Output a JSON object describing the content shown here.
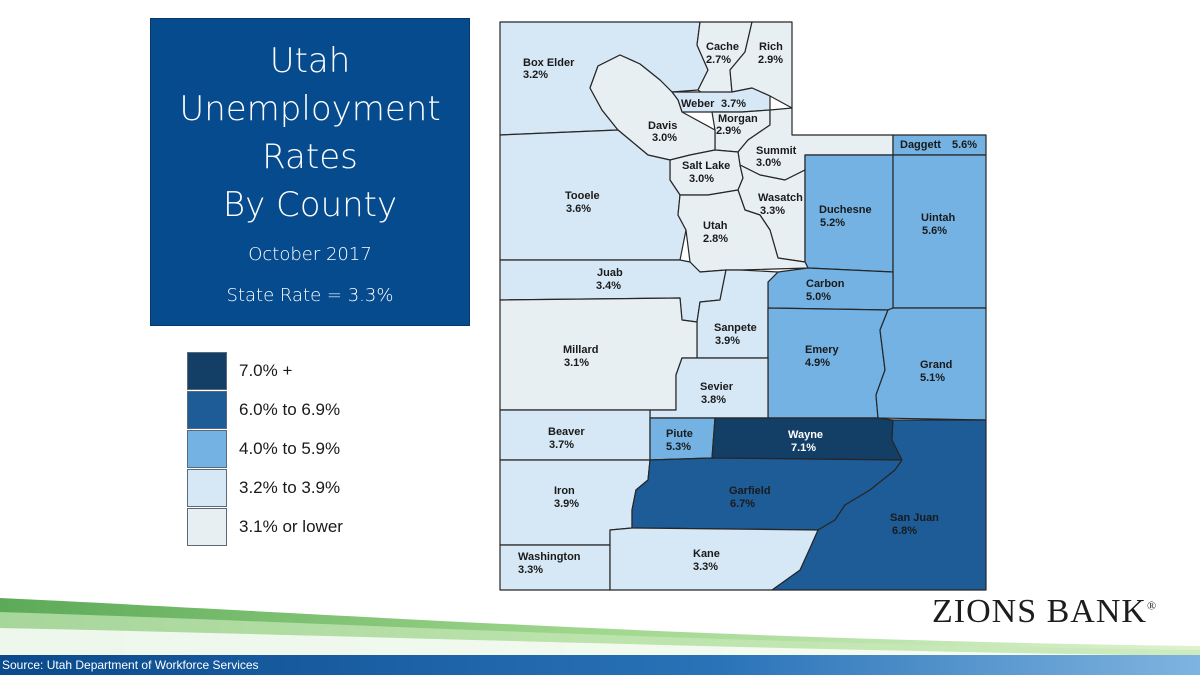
{
  "title_box": {
    "lines": [
      "Utah",
      "Unemployment",
      "Rates",
      "By County"
    ],
    "date": "October 2017",
    "state_rate": "State Rate = 3.3%"
  },
  "legend": [
    {
      "label": "7.0% +",
      "color": "#133f66"
    },
    {
      "label": "6.0% to 6.9%",
      "color": "#1e5c98"
    },
    {
      "label": "4.0% to 5.9%",
      "color": "#73b2e3"
    },
    {
      "label": "3.2% to 3.9%",
      "color": "#d6e8f6"
    },
    {
      "label": "3.1% or lower",
      "color": "#e8eff3"
    }
  ],
  "counties": [
    {
      "key": "box_elder",
      "name": "Box Elder",
      "rate": "3.2%"
    },
    {
      "key": "cache",
      "name": "Cache",
      "rate": "2.7%"
    },
    {
      "key": "rich",
      "name": "Rich",
      "rate": "2.9%"
    },
    {
      "key": "weber",
      "name": "Weber",
      "rate": "3.7%"
    },
    {
      "key": "morgan",
      "name": "Morgan",
      "rate": "2.9%"
    },
    {
      "key": "davis",
      "name": "Davis",
      "rate": "3.0%"
    },
    {
      "key": "summit",
      "name": "Summit",
      "rate": "3.0%"
    },
    {
      "key": "daggett",
      "name": "Daggett",
      "rate": "5.6%"
    },
    {
      "key": "salt_lake",
      "name": "Salt Lake",
      "rate": "3.0%"
    },
    {
      "key": "tooele",
      "name": "Tooele",
      "rate": "3.6%"
    },
    {
      "key": "wasatch",
      "name": "Wasatch",
      "rate": "3.3%"
    },
    {
      "key": "duchesne",
      "name": "Duchesne",
      "rate": "5.2%"
    },
    {
      "key": "uintah",
      "name": "Uintah",
      "rate": "5.6%"
    },
    {
      "key": "utah",
      "name": "Utah",
      "rate": "2.8%"
    },
    {
      "key": "juab",
      "name": "Juab",
      "rate": "3.4%"
    },
    {
      "key": "carbon",
      "name": "Carbon",
      "rate": "5.0%"
    },
    {
      "key": "sanpete",
      "name": "Sanpete",
      "rate": "3.9%"
    },
    {
      "key": "millard",
      "name": "Millard",
      "rate": "3.1%"
    },
    {
      "key": "emery",
      "name": "Emery",
      "rate": "4.9%"
    },
    {
      "key": "grand",
      "name": "Grand",
      "rate": "5.1%"
    },
    {
      "key": "sevier",
      "name": "Sevier",
      "rate": "3.8%"
    },
    {
      "key": "beaver",
      "name": "Beaver",
      "rate": "3.7%"
    },
    {
      "key": "piute",
      "name": "Piute",
      "rate": "5.3%"
    },
    {
      "key": "wayne",
      "name": "Wayne",
      "rate": "7.1%"
    },
    {
      "key": "iron",
      "name": "Iron",
      "rate": "3.9%"
    },
    {
      "key": "garfield",
      "name": "Garfield",
      "rate": "6.7%"
    },
    {
      "key": "san_juan",
      "name": "San Juan",
      "rate": "6.8%"
    },
    {
      "key": "washington",
      "name": "Washington",
      "rate": "3.3%"
    },
    {
      "key": "kane",
      "name": "Kane",
      "rate": "3.3%"
    }
  ],
  "logo": {
    "text": "ZIONS BANK",
    "mark": "®"
  },
  "source": "Source:  Utah Department of Workforce Services"
}
